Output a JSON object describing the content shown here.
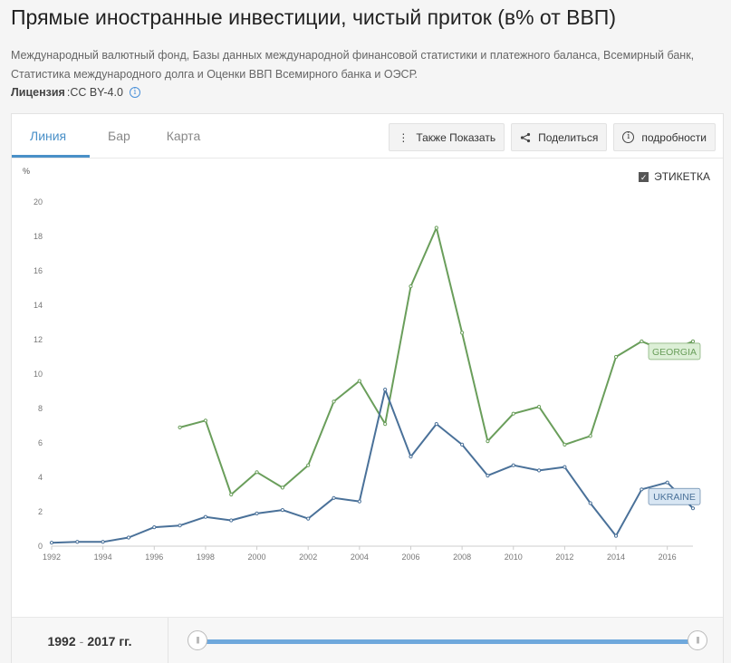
{
  "header": {
    "title": "Прямые иностранные инвестиции, чистый приток (в% от ВВП)",
    "source": "Международный валютный фонд, Базы данных международной финансовой статистики и платежного баланса, Всемирный банк, Статистика международного долга и Оценки ВВП Всемирного банка и ОЭСР.",
    "license_label": "Лицензия",
    "license_value": ":CC BY-4.0"
  },
  "tabs": [
    {
      "label": "Линия",
      "active": true
    },
    {
      "label": "Бар",
      "active": false
    },
    {
      "label": "Карта",
      "active": false
    }
  ],
  "buttons": {
    "also_show": "Также Показать",
    "share": "Поделиться",
    "details": "подробности"
  },
  "label_toggle": {
    "label": "ЭТИКЕТКА",
    "checked": true
  },
  "range": {
    "start": "1992",
    "separator": "-",
    "end": "2017 гг."
  },
  "colors": {
    "georgia": "#6a9e5b",
    "ukraine": "#4a7199",
    "accent": "#4a90c8"
  },
  "chart_data": {
    "type": "line",
    "ylabel": "%",
    "ylim": [
      0,
      20
    ],
    "yticks": [
      0,
      2,
      4,
      6,
      8,
      10,
      12,
      14,
      16,
      18,
      20
    ],
    "xlim": [
      1992,
      2017
    ],
    "xticks": [
      1992,
      1994,
      1996,
      1998,
      2000,
      2002,
      2004,
      2006,
      2008,
      2010,
      2012,
      2014,
      2016
    ],
    "grid": false,
    "series": [
      {
        "name": "GEORGIA",
        "color": "#6a9e5b",
        "x": [
          1997,
          1998,
          1999,
          2000,
          2001,
          2002,
          2003,
          2004,
          2005,
          2006,
          2007,
          2008,
          2009,
          2010,
          2011,
          2012,
          2013,
          2014,
          2015,
          2016,
          2017
        ],
        "y": [
          6.9,
          7.3,
          3.0,
          4.3,
          3.4,
          4.7,
          8.4,
          9.6,
          7.1,
          15.1,
          18.5,
          12.4,
          6.1,
          7.7,
          8.1,
          5.9,
          6.4,
          11.0,
          11.9,
          11.3,
          11.9
        ]
      },
      {
        "name": "UKRAINE",
        "color": "#4a7199",
        "x": [
          1992,
          1993,
          1994,
          1995,
          1996,
          1997,
          1998,
          1999,
          2000,
          2001,
          2002,
          2003,
          2004,
          2005,
          2006,
          2007,
          2008,
          2009,
          2010,
          2011,
          2012,
          2013,
          2014,
          2015,
          2016,
          2017
        ],
        "y": [
          0.2,
          0.25,
          0.25,
          0.5,
          1.1,
          1.2,
          1.7,
          1.5,
          1.9,
          2.1,
          1.6,
          2.8,
          2.6,
          9.1,
          5.2,
          7.1,
          5.9,
          4.1,
          4.7,
          4.4,
          4.6,
          2.5,
          0.6,
          3.3,
          3.7,
          2.2
        ]
      }
    ]
  }
}
